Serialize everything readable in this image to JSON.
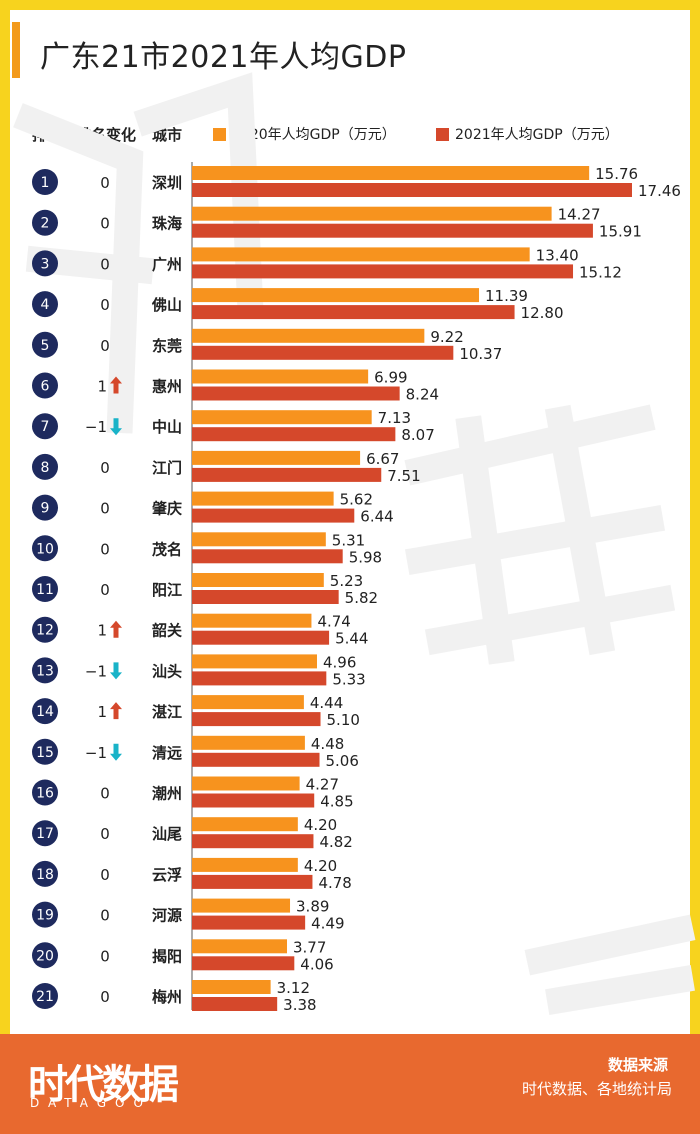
{
  "title": "广东21市2021年人均GDP",
  "headers": {
    "rank": "排名",
    "rank_change": "排名变化",
    "city": "城市"
  },
  "footer": {
    "logo": "时代数据",
    "logo_sub": "DATAGOO",
    "source_label": "数据来源",
    "source": "时代数据、各地统计局"
  },
  "colors": {
    "series_2020": "#f7931e",
    "series_2021": "#d5482b",
    "rank_circle": "#1e2a5e",
    "up": "#d5482b",
    "down": "#19b3c8",
    "footer": "#e8692f",
    "frame": "#f7d31e"
  },
  "chart_data": {
    "type": "bar",
    "orientation": "horizontal",
    "title": "广东21市2021年人均GDP",
    "legend_position": "top",
    "categories": [
      "深圳",
      "珠海",
      "广州",
      "佛山",
      "东莞",
      "惠州",
      "中山",
      "江门",
      "肇庆",
      "茂名",
      "阳江",
      "韶关",
      "汕头",
      "湛江",
      "清远",
      "潮州",
      "汕尾",
      "云浮",
      "河源",
      "揭阳",
      "梅州"
    ],
    "ranks": [
      "1",
      "2",
      "3",
      "4",
      "5",
      "6",
      "7",
      "8",
      "9",
      "10",
      "11",
      "12",
      "13",
      "14",
      "15",
      "16",
      "17",
      "18",
      "19",
      "20",
      "21"
    ],
    "rank_change": [
      "0",
      "0",
      "0",
      "0",
      "0",
      "1",
      "−1",
      "0",
      "0",
      "0",
      "0",
      "1",
      "−1",
      "1",
      "−1",
      "0",
      "0",
      "0",
      "0",
      "0",
      "0"
    ],
    "rank_change_direction": [
      "none",
      "none",
      "none",
      "none",
      "none",
      "up",
      "down",
      "none",
      "none",
      "none",
      "none",
      "up",
      "down",
      "up",
      "down",
      "none",
      "none",
      "none",
      "none",
      "none",
      "none"
    ],
    "series": [
      {
        "name": "2020年人均GDP（万元）",
        "values": [
          "15.76",
          "14.27",
          "13.40",
          "11.39",
          "9.22",
          "6.99",
          "7.13",
          "6.67",
          "5.62",
          "5.31",
          "5.23",
          "4.74",
          "4.96",
          "4.44",
          "4.48",
          "4.27",
          "4.20",
          "4.20",
          "3.89",
          "3.77",
          "3.12"
        ]
      },
      {
        "name": "2021年人均GDP（万元）",
        "values": [
          "17.46",
          "15.91",
          "15.12",
          "12.80",
          "10.37",
          "8.24",
          "8.07",
          "7.51",
          "6.44",
          "5.98",
          "5.82",
          "5.44",
          "5.33",
          "5.10",
          "5.06",
          "4.85",
          "4.82",
          "4.78",
          "4.49",
          "4.06",
          "3.38"
        ]
      }
    ]
  }
}
